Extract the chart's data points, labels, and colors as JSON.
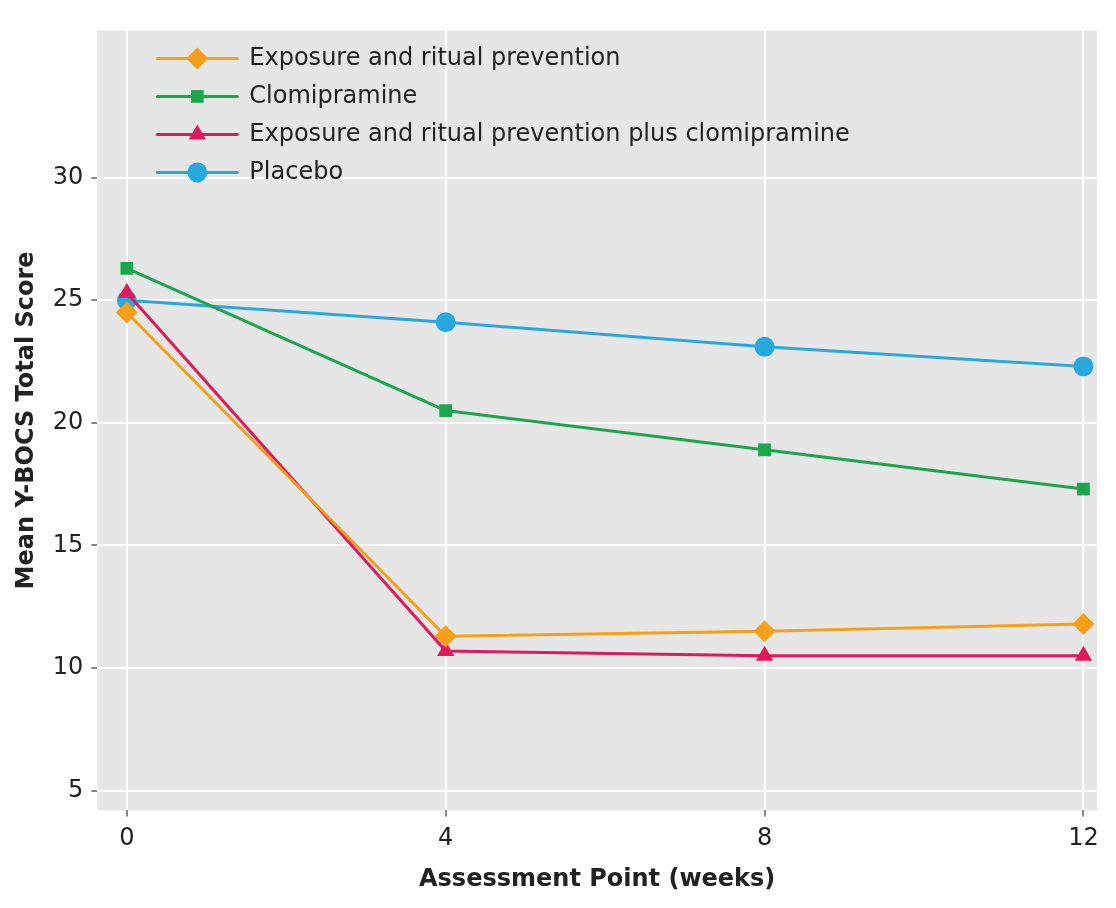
{
  "chart_data": {
    "type": "line",
    "xlabel": "Assessment Point (weeks)",
    "ylabel": "Mean Y-BOCS Total Score",
    "x": [
      0,
      4,
      8,
      12
    ],
    "series": [
      {
        "name": "Exposure and ritual prevention",
        "color": "#f5a01a",
        "marker": "diamond",
        "values": [
          24.5,
          11.3,
          11.5,
          11.8
        ]
      },
      {
        "name": "Clomipramine",
        "color": "#1aa64a",
        "marker": "square",
        "values": [
          26.3,
          20.5,
          18.9,
          17.3
        ]
      },
      {
        "name": "Exposure and ritual prevention plus clomipramine",
        "color": "#e0185e",
        "marker": "triangle",
        "values": [
          25.3,
          10.7,
          10.5,
          10.5
        ]
      },
      {
        "name": "Placebo",
        "color": "#29a8e0",
        "marker": "circle",
        "values": [
          25.0,
          24.1,
          23.1,
          22.3
        ]
      }
    ],
    "xlim": [
      -0.37,
      12.17
    ],
    "xticks": [
      0,
      4,
      8,
      12
    ],
    "ylim": [
      4.2,
      36
    ],
    "yticks": [
      5,
      10,
      15,
      20,
      25,
      30
    ],
    "grid": true,
    "legend": "top left",
    "line_style": "solid"
  }
}
